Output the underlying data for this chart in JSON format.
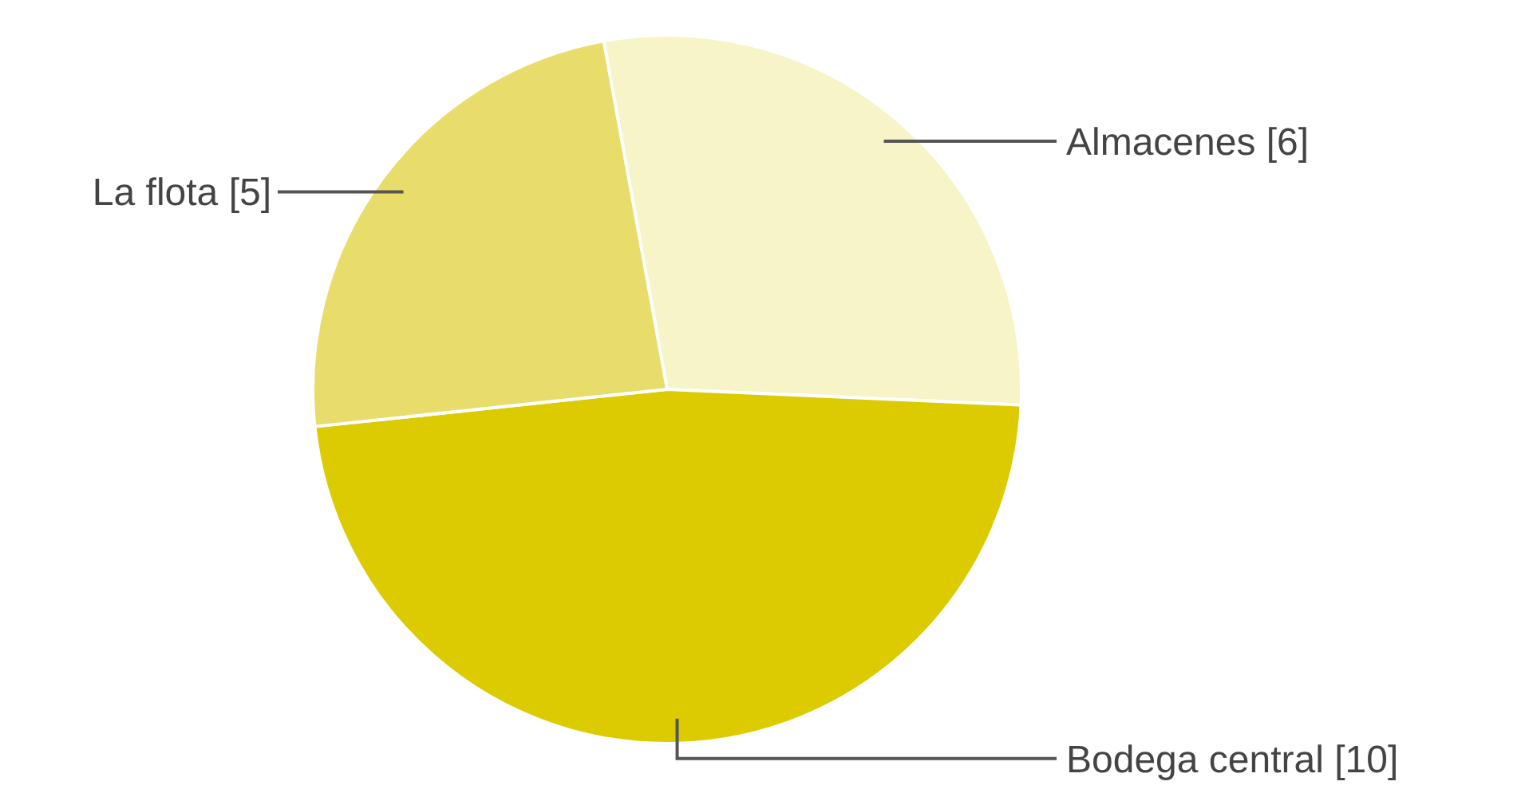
{
  "chart_data": {
    "type": "pie",
    "categories": [
      "Almacenes [6]",
      "Bodega central [10]",
      "La flota [5]"
    ],
    "values": [
      6,
      10,
      5
    ],
    "colors": [
      "#f7f4c8",
      "#dccb00",
      "#e8dc6a"
    ]
  }
}
